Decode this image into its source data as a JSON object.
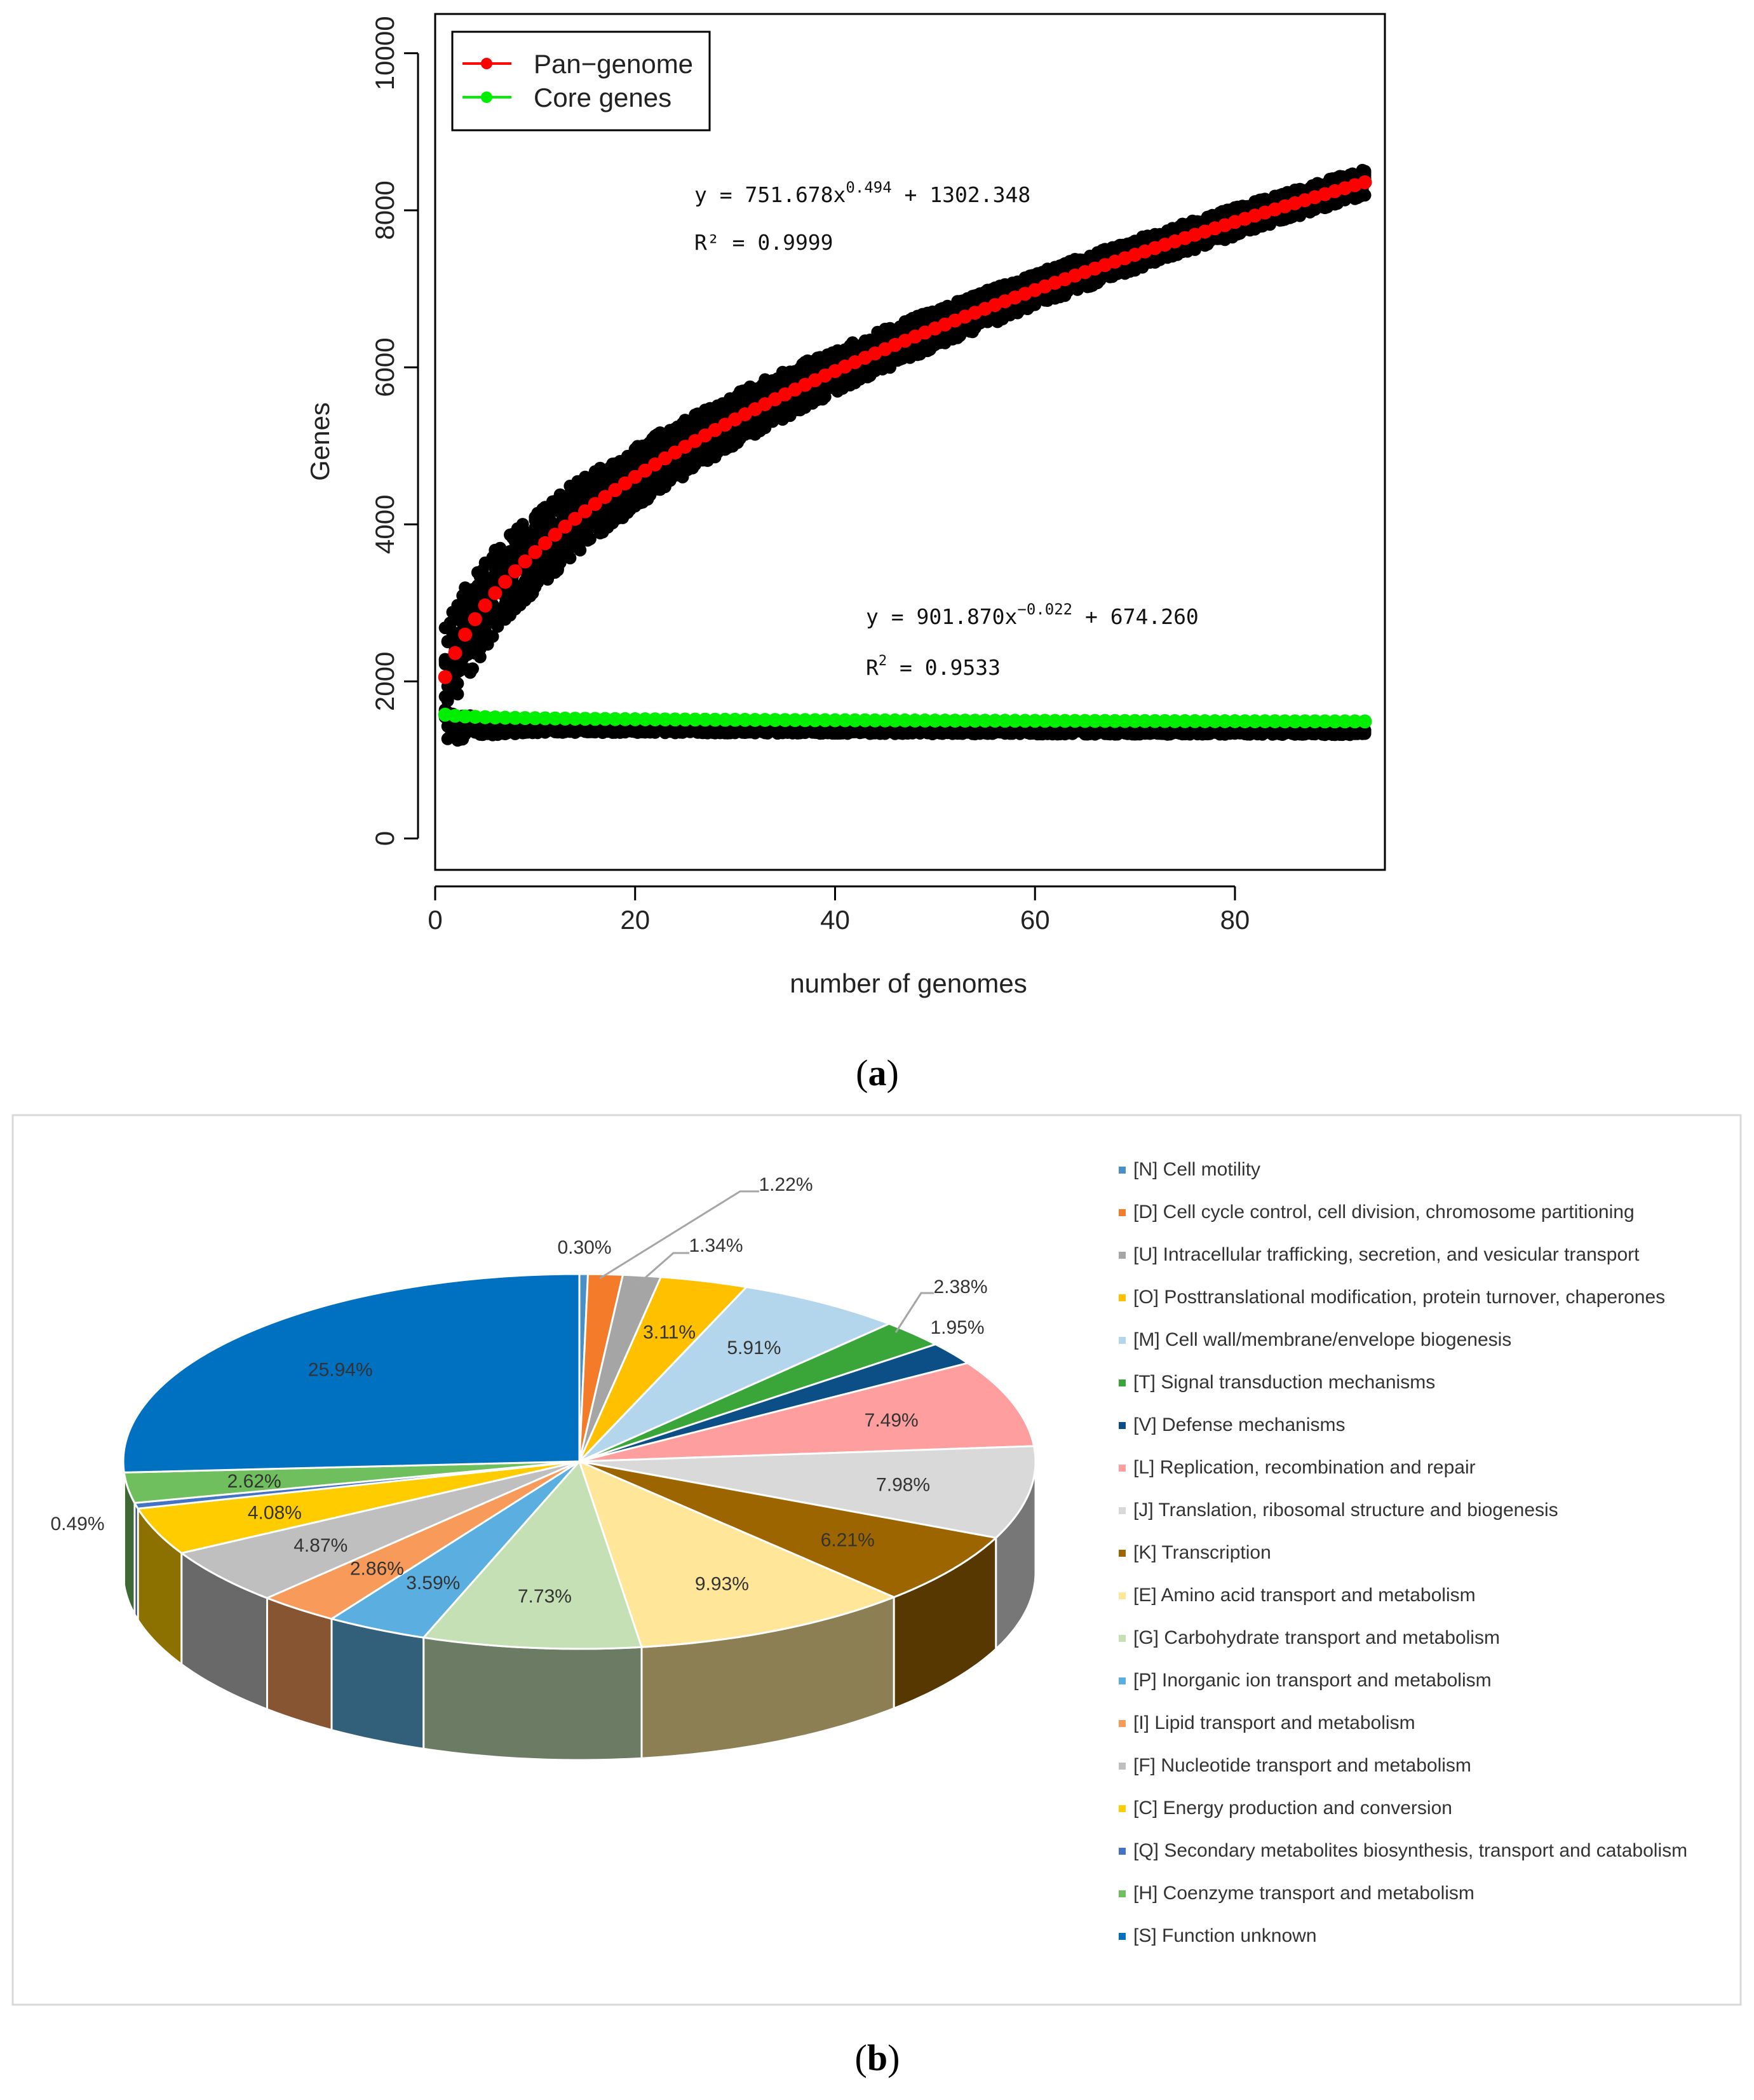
{
  "panels": {
    "a": {
      "caption": "(a)",
      "caption_letter": "a",
      "chart_data": {
        "type": "scatter",
        "xlabel": "number of genomes",
        "ylabel": "Genes",
        "xlim": [
          0,
          95
        ],
        "ylim": [
          -400,
          10500
        ],
        "xticks": [
          0,
          20,
          40,
          60,
          80
        ],
        "yticks": [
          0,
          2000,
          4000,
          6000,
          8000,
          10000
        ],
        "legend": {
          "position": "top-left",
          "entries": [
            {
              "label": "Pan−genome",
              "color": "#ff0000"
            },
            {
              "label": "Core genes",
              "color": "#00ee00"
            }
          ]
        },
        "series": [
          {
            "name": "Pan-genome",
            "color": "#ff0000",
            "x_range": [
              1,
              93
            ],
            "fit": {
              "a": 751.678,
              "b": 0.494,
              "c": 1302.348
            }
          },
          {
            "name": "Core genes",
            "color": "#00ee00",
            "x_range": [
              1,
              93
            ],
            "fit": {
              "a": 901.87,
              "b": -0.022,
              "c": 674.26
            }
          }
        ],
        "raw_points_color": "#000000",
        "annotations": {
          "pan": {
            "eq_lhs": "y = 751.678x",
            "eq_exp": "0.494",
            "eq_rhs": " + 1302.348",
            "r2": "R² = 0.9999"
          },
          "core": {
            "eq_lhs": "y = 901.870x",
            "eq_exp": "−0.022",
            "eq_rhs": " + 674.260",
            "r2_lhs": "R",
            "r2_exp": "2",
            "r2_rhs": " = 0.9533"
          }
        }
      }
    },
    "b": {
      "caption": "(b)",
      "caption_letter": "b",
      "chart_data": {
        "type": "pie",
        "variant": "3d",
        "slices": [
          {
            "code": "[N]",
            "label": "Cell motility",
            "value": 0.3,
            "pct": "0.30%",
            "color": "#4a90c8"
          },
          {
            "code": "[D]",
            "label": "Cell cycle control, cell division, chromosome partitioning",
            "value": 1.22,
            "pct": "1.22%",
            "color": "#f47b2a"
          },
          {
            "code": "[U]",
            "label": "Intracellular trafficking, secretion, and vesicular transport",
            "value": 1.34,
            "pct": "1.34%",
            "color": "#a5a5a5"
          },
          {
            "code": "[O]",
            "label": "Posttranslational modification, protein turnover, chaperones",
            "value": 3.11,
            "pct": "3.11%",
            "color": "#ffc000"
          },
          {
            "code": "[M]",
            "label": "Cell wall/membrane/envelope biogenesis",
            "value": 5.91,
            "pct": "5.91%",
            "color": "#b4d6ec"
          },
          {
            "code": "[T]",
            "label": "Signal transduction mechanisms",
            "value": 2.38,
            "pct": "2.38%",
            "color": "#3aa63a"
          },
          {
            "code": "[V]",
            "label": "Defense mechanisms",
            "value": 1.95,
            "pct": "1.95%",
            "color": "#0b4f86"
          },
          {
            "code": "[L]",
            "label": "Replication, recombination and repair",
            "value": 7.49,
            "pct": "7.49%",
            "color": "#ff9e9e"
          },
          {
            "code": "[J]",
            "label": "Translation, ribosomal structure and biogenesis",
            "value": 7.98,
            "pct": "7.98%",
            "color": "#d9d9d9"
          },
          {
            "code": "[K]",
            "label": "Transcription",
            "value": 6.21,
            "pct": "6.21%",
            "color": "#9c6500"
          },
          {
            "code": "[E]",
            "label": "Amino acid transport and metabolism",
            "value": 9.93,
            "pct": "9.93%",
            "color": "#ffe699"
          },
          {
            "code": "[G]",
            "label": "Carbohydrate transport and metabolism",
            "value": 7.73,
            "pct": "7.73%",
            "color": "#c5e0b4"
          },
          {
            "code": "[P]",
            "label": "Inorganic ion transport and metabolism",
            "value": 3.59,
            "pct": "3.59%",
            "color": "#5aafe0"
          },
          {
            "code": "[I]",
            "label": "Lipid transport and metabolism",
            "value": 2.86,
            "pct": "2.86%",
            "color": "#f79a5a"
          },
          {
            "code": "[F]",
            "label": "Nucleotide transport and metabolism",
            "value": 4.87,
            "pct": "4.87%",
            "color": "#bfbfbf"
          },
          {
            "code": "[C]",
            "label": "Energy production and conversion",
            "value": 4.08,
            "pct": "4.08%",
            "color": "#ffcc00"
          },
          {
            "code": "[Q]",
            "label": "Secondary metabolites biosynthesis, transport and catabolism",
            "value": 0.49,
            "pct": "0.49%",
            "color": "#4472c4"
          },
          {
            "code": "[H]",
            "label": "Coenzyme transport and metabolism",
            "value": 2.62,
            "pct": "2.62%",
            "color": "#70bf5f"
          },
          {
            "code": "[S]",
            "label": "Function unknown",
            "value": 25.94,
            "pct": "25.94%",
            "color": "#0070c0"
          }
        ],
        "legend_position": "right"
      }
    }
  }
}
